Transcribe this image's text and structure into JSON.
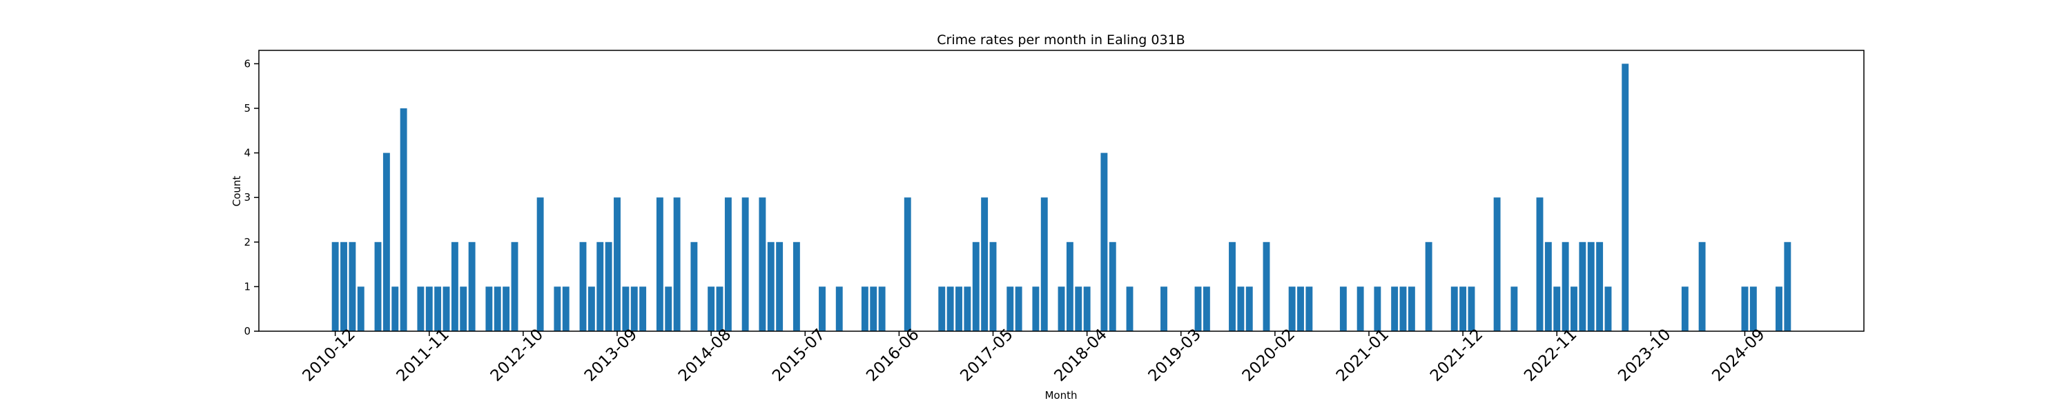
{
  "chart_data": {
    "type": "bar",
    "title": "Crime rates per month in Ealing 031B",
    "xlabel": "Month",
    "ylabel": "Count",
    "color": "#1f77b4",
    "categories": [
      "2010-12",
      null,
      null,
      null,
      null,
      null,
      null,
      null,
      null,
      null,
      null,
      "2011-11",
      null,
      null,
      null,
      null,
      null,
      null,
      null,
      null,
      null,
      null,
      "2012-10",
      null,
      null,
      null,
      null,
      null,
      null,
      null,
      null,
      null,
      null,
      "2013-09",
      null,
      null,
      null,
      null,
      null,
      null,
      null,
      null,
      null,
      null,
      "2014-08",
      null,
      null,
      null,
      null,
      null,
      null,
      null,
      null,
      null,
      null,
      "2015-07",
      null,
      null,
      null,
      null,
      null,
      null,
      null,
      null,
      null,
      null,
      "2016-06",
      null,
      null,
      null,
      null,
      null,
      null,
      null,
      null,
      null,
      null,
      "2017-05",
      null,
      null,
      null,
      null,
      null,
      null,
      null,
      null,
      null,
      null,
      "2018-04",
      null,
      null,
      null,
      null,
      null,
      null,
      null,
      null,
      null,
      null,
      "2019-03",
      null,
      null,
      null,
      null,
      null,
      null,
      null,
      null,
      null,
      null,
      "2020-02",
      null,
      null,
      null,
      null,
      null,
      null,
      null,
      null,
      null,
      null,
      "2021-01",
      null,
      null,
      null,
      null,
      null,
      null,
      null,
      null,
      null,
      null,
      "2021-12",
      null,
      null,
      null,
      null,
      null,
      null,
      null,
      null,
      null,
      null,
      "2022-11",
      null,
      null,
      null,
      null,
      null,
      null,
      null,
      null,
      null,
      null,
      "2023-10",
      null,
      null,
      null,
      null,
      null,
      null,
      null,
      null,
      null,
      null,
      "2024-09",
      null,
      null,
      null,
      null,
      null
    ],
    "values": [
      2,
      2,
      2,
      1,
      0,
      2,
      4,
      1,
      5,
      0,
      1,
      1,
      1,
      1,
      2,
      1,
      2,
      0,
      1,
      1,
      1,
      2,
      0,
      0,
      3,
      0,
      1,
      1,
      0,
      2,
      1,
      2,
      2,
      3,
      1,
      1,
      1,
      0,
      3,
      1,
      3,
      0,
      2,
      0,
      1,
      1,
      3,
      0,
      3,
      0,
      3,
      2,
      2,
      0,
      2,
      0,
      0,
      1,
      0,
      1,
      0,
      0,
      1,
      1,
      1,
      0,
      0,
      3,
      0,
      0,
      0,
      1,
      1,
      1,
      1,
      2,
      3,
      2,
      0,
      1,
      1,
      0,
      1,
      3,
      0,
      1,
      2,
      1,
      1,
      0,
      4,
      2,
      0,
      1,
      0,
      0,
      0,
      1,
      0,
      0,
      0,
      1,
      1,
      0,
      0,
      2,
      1,
      1,
      0,
      2,
      0,
      0,
      1,
      1,
      1,
      0,
      0,
      0,
      1,
      0,
      1,
      0,
      1,
      0,
      1,
      1,
      1,
      0,
      2,
      0,
      0,
      1,
      1,
      1,
      0,
      0,
      3,
      0,
      1,
      0,
      0,
      3,
      2,
      1,
      2,
      1,
      2,
      2,
      2,
      1,
      0,
      6,
      0,
      0,
      0,
      0,
      0,
      0,
      1,
      0,
      2,
      0,
      0,
      0,
      0,
      1,
      1,
      0,
      0,
      1,
      2
    ],
    "ylim": [
      0,
      6.3
    ],
    "yticks": [
      0,
      1,
      2,
      3,
      4,
      5,
      6
    ]
  }
}
